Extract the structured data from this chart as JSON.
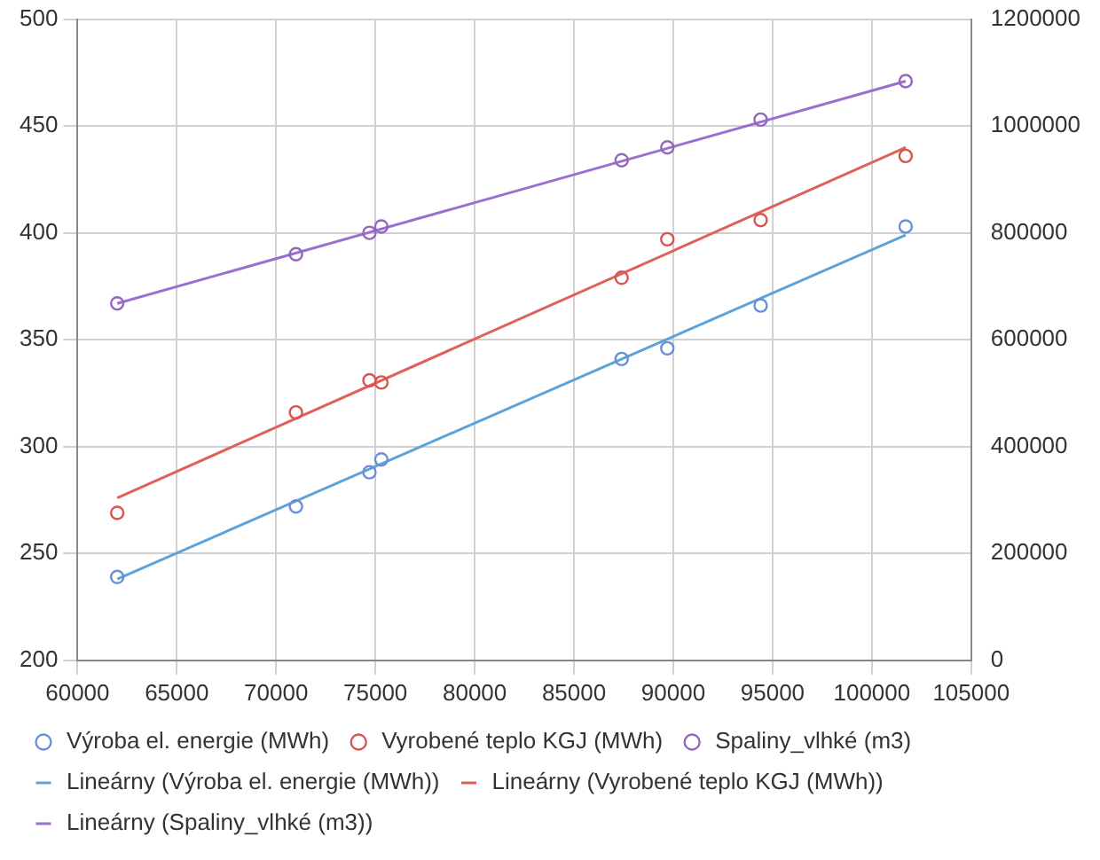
{
  "chart_data": {
    "type": "scatter",
    "xlim": [
      60000,
      105000
    ],
    "xticks": [
      60000,
      65000,
      70000,
      75000,
      80000,
      85000,
      90000,
      95000,
      100000,
      105000
    ],
    "ylim": [
      200,
      500
    ],
    "yticks": [
      200,
      250,
      300,
      350,
      400,
      450,
      500
    ],
    "y2lim": [
      0,
      1200000
    ],
    "y2ticks": [
      0,
      200000,
      400000,
      600000,
      800000,
      1000000,
      1200000
    ],
    "grid": true,
    "legend": "bottom",
    "marker": "circle",
    "series": [
      {
        "name": "Výroba el. energie (MWh)",
        "type": "scatter",
        "color": "#6a8fd8",
        "x": [
          62000,
          71000,
          74700,
          75300,
          87400,
          89700,
          94400,
          101700
        ],
        "values": [
          239,
          272,
          288,
          294,
          341,
          346,
          366,
          403
        ]
      },
      {
        "name": "Vyrobené teplo KGJ (MWh)",
        "type": "scatter",
        "color": "#d9534f",
        "x": [
          62000,
          71000,
          74700,
          75300,
          87400,
          89700,
          94400,
          101700
        ],
        "values": [
          269,
          316,
          331,
          330,
          379,
          397,
          406,
          436
        ]
      },
      {
        "name": "Spaliny_vlhké (m3)",
        "type": "scatter",
        "axis": "y2",
        "color": "#9467bd",
        "x": [
          62000,
          71000,
          74700,
          75300,
          87400,
          89700,
          94400,
          101700
        ],
        "values": [
          668000,
          760000,
          800000,
          812000,
          936000,
          960000,
          1012000,
          1084000
        ]
      },
      {
        "name": "Lineárny (Výroba el. energie (MWh))",
        "type": "line",
        "marker": "none",
        "color": "#5ba3d9",
        "x": [
          62000,
          101700
        ],
        "values": [
          238,
          399
        ]
      },
      {
        "name": "Lineárny (Vyrobené teplo KGJ (MWh))",
        "type": "line",
        "marker": "none",
        "color": "#e0605c",
        "x": [
          62000,
          101700
        ],
        "values": [
          276,
          440
        ]
      },
      {
        "name": "Lineárny (Spaliny_vlhké (m3))",
        "type": "line",
        "marker": "none",
        "axis": "y2",
        "color": "#9b6fd0",
        "x": [
          62000,
          101700
        ],
        "values": [
          668000,
          1084000
        ]
      }
    ]
  }
}
